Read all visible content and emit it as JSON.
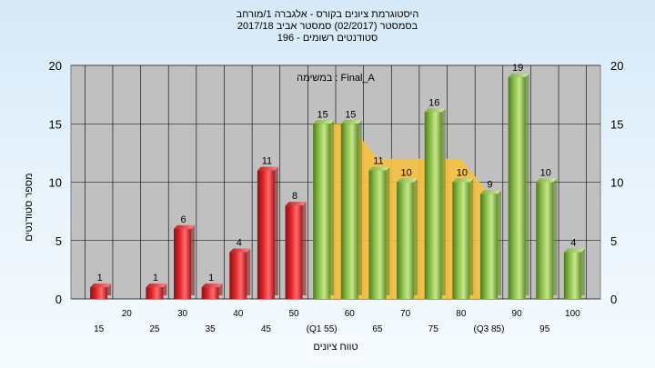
{
  "titles": [
    "היסטוגרמת ציונים בקורס - אלגברה 1/מורחב",
    "בסמסטר  (02/2017)  סמסטר אביב 2017/18",
    "סטודנטים רשומים - 196"
  ],
  "ylabel": "מספר סטודנטים",
  "xlabel": "טווח ציונים",
  "annotation": "במשימה : Final_A",
  "colors": {
    "fail_bar": "#e0262a",
    "pass_bar": "#8dc24a",
    "area": "#f6c040",
    "plot_bg": "#c0c0c0",
    "grid": "#000000"
  },
  "chart_data": {
    "type": "bar",
    "categories": [
      "15",
      "20",
      "25",
      "30",
      "35",
      "40",
      "45",
      "50",
      "55",
      "60",
      "65",
      "70",
      "75",
      "80",
      "85",
      "90",
      "95",
      "100"
    ],
    "x_tick_labels": [
      "15",
      "20",
      "25",
      "30",
      "35",
      "40",
      "45",
      "50",
      "(Q1 55)",
      "60",
      "65",
      "70",
      "75",
      "80",
      "(Q3 85)",
      "90",
      "95",
      "100"
    ],
    "values": [
      1,
      0,
      1,
      6,
      1,
      4,
      11,
      8,
      15,
      15,
      11,
      10,
      16,
      10,
      9,
      19,
      10,
      4
    ],
    "value_labels": [
      "1",
      "",
      "1",
      "6",
      "1",
      "4",
      "11",
      "8",
      "15",
      "15",
      "11",
      "10",
      "16",
      "10",
      "9",
      "19",
      "10",
      "4"
    ],
    "bar_status": [
      "fail",
      "fail",
      "fail",
      "fail",
      "fail",
      "fail",
      "fail",
      "fail",
      "pass",
      "pass",
      "pass",
      "pass",
      "pass",
      "pass",
      "pass",
      "pass",
      "pass",
      "pass"
    ],
    "ylim": [
      0,
      20
    ],
    "yticks": [
      "0",
      "5",
      "10",
      "15",
      "20"
    ],
    "y_tick_values": [
      0,
      5,
      10,
      15,
      20
    ],
    "area_between_quartiles": {
      "x_start": "55",
      "x_end": "85",
      "values": [
        15,
        15,
        12,
        12,
        12,
        12,
        9
      ]
    },
    "grid": true,
    "right_axis": true
  }
}
